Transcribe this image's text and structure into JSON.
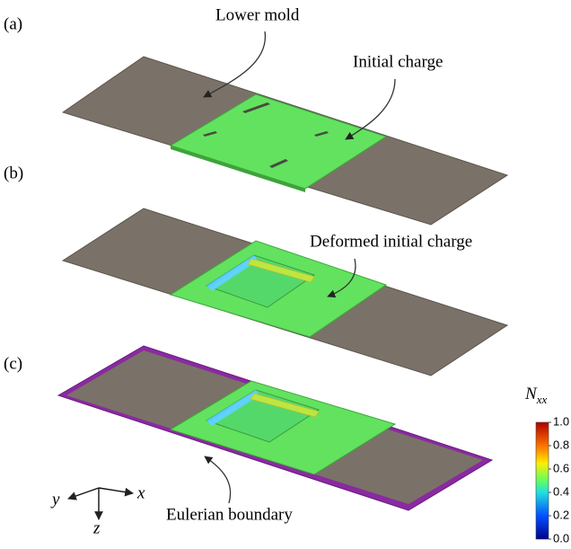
{
  "panels": [
    {
      "label": "(a)",
      "annotations": [
        "Lower mold",
        "Initial charge"
      ]
    },
    {
      "label": "(b)",
      "annotations": [
        "Deformed initial charge"
      ]
    },
    {
      "label": "(c)",
      "annotations": [
        "Eulerian boundary"
      ]
    }
  ],
  "axes": {
    "x": "x",
    "y": "y",
    "z": "z"
  },
  "colorbar": {
    "title": {
      "symbol": "N",
      "subscript": "xx"
    },
    "range": [
      0,
      1
    ],
    "ticks": [
      {
        "value": 0,
        "label": "0.0"
      },
      {
        "value": 0.2,
        "label": "0.2"
      },
      {
        "value": 0.4,
        "label": "0.4"
      },
      {
        "value": 0.6,
        "label": "0.6"
      },
      {
        "value": 0.8,
        "label": "0.8"
      },
      {
        "value": 1,
        "label": "1.0"
      }
    ]
  }
}
